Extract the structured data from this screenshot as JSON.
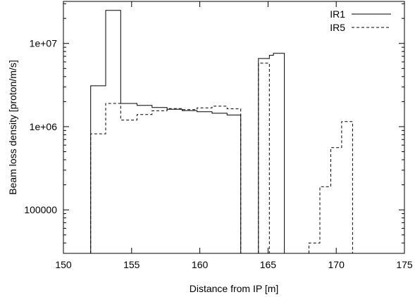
{
  "chart_data": {
    "type": "line",
    "step": true,
    "xlabel": "Distance from IP [m]",
    "ylabel": "Beam loss density  [proton/m/s]",
    "xlim": [
      150,
      175
    ],
    "ylim": [
      30000,
      32000000
    ],
    "y_scale": "log",
    "x_ticks": [
      150,
      155,
      160,
      165,
      170,
      175
    ],
    "y_ticks": [
      100000,
      1000000,
      10000000
    ],
    "y_tick_labels": [
      "100000",
      "1e+06",
      "1e+07"
    ],
    "grid": false,
    "legend_position": "top-right",
    "series": [
      {
        "name": "IR1",
        "style": "solid",
        "color": "#000000",
        "segments": [
          {
            "x": [
              152,
              153.1,
              153.1,
              154.2,
              154.2,
              155.4,
              155.4,
              156.5,
              156.5,
              157.6,
              157.6,
              158.7,
              158.7,
              159.8,
              159.8,
              160.9,
              160.9,
              162,
              162,
              163
            ],
            "y": [
              3100000,
              3100000,
              25000000,
              25000000,
              1900000,
              1900000,
              1800000,
              1800000,
              1700000,
              1700000,
              1620000,
              1620000,
              1560000,
              1560000,
              1510000,
              1510000,
              1450000,
              1450000,
              1380000,
              1380000
            ]
          },
          {
            "x": [
              164.3,
              165.1,
              165.1,
              165.4,
              165.4,
              166.2
            ],
            "y": [
              6600000,
              6600000,
              7200000,
              7200000,
              7600000,
              7600000
            ]
          }
        ]
      },
      {
        "name": "IR5",
        "style": "dashed",
        "color": "#000000",
        "segments": [
          {
            "x": [
              152,
              153.1,
              153.1,
              154.2,
              154.2,
              155.4,
              155.4,
              156.5,
              156.5,
              157.6,
              157.6,
              158.7,
              158.7,
              159.8,
              159.8,
              160.9,
              160.9,
              162,
              162,
              163
            ],
            "y": [
              820000,
              820000,
              1900000,
              1900000,
              1200000,
              1200000,
              1400000,
              1400000,
              1550000,
              1550000,
              1650000,
              1650000,
              1600000,
              1600000,
              1680000,
              1680000,
              1760000,
              1760000,
              1640000,
              1640000
            ]
          },
          {
            "x": [
              164.3,
              165.1
            ],
            "y": [
              5800000,
              5800000
            ]
          },
          {
            "x": [
              168,
              168.8,
              168.8,
              169.6,
              169.6,
              170.4,
              170.4,
              171.2
            ],
            "y": [
              40000,
              40000,
              190000,
              190000,
              560000,
              560000,
              1150000,
              1150000
            ]
          }
        ]
      }
    ]
  }
}
